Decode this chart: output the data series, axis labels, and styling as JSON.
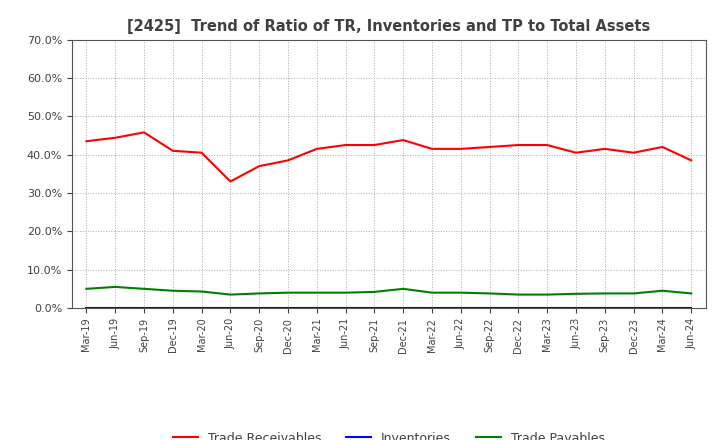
{
  "title": "[2425]  Trend of Ratio of TR, Inventories and TP to Total Assets",
  "x_labels": [
    "Mar-19",
    "Jun-19",
    "Sep-19",
    "Dec-19",
    "Mar-20",
    "Jun-20",
    "Sep-20",
    "Dec-20",
    "Mar-21",
    "Jun-21",
    "Sep-21",
    "Dec-21",
    "Mar-22",
    "Jun-22",
    "Sep-22",
    "Dec-22",
    "Mar-23",
    "Jun-23",
    "Sep-23",
    "Dec-23",
    "Mar-24",
    "Jun-24"
  ],
  "trade_receivables": [
    0.435,
    0.444,
    0.458,
    0.41,
    0.405,
    0.33,
    0.37,
    0.385,
    0.415,
    0.425,
    0.425,
    0.438,
    0.415,
    0.415,
    0.42,
    0.425,
    0.425,
    0.405,
    0.415,
    0.405,
    0.42,
    0.385
  ],
  "inventories": [
    0.001,
    0.001,
    0.001,
    0.001,
    0.001,
    0.001,
    0.001,
    0.001,
    0.001,
    0.001,
    0.001,
    0.001,
    0.001,
    0.001,
    0.001,
    0.001,
    0.001,
    0.001,
    0.001,
    0.001,
    0.001,
    0.001
  ],
  "trade_payables": [
    0.05,
    0.055,
    0.05,
    0.045,
    0.043,
    0.035,
    0.038,
    0.04,
    0.04,
    0.04,
    0.042,
    0.05,
    0.04,
    0.04,
    0.038,
    0.035,
    0.035,
    0.037,
    0.038,
    0.038,
    0.045,
    0.038
  ],
  "tr_color": "#FF0000",
  "inv_color": "#0000FF",
  "tp_color": "#008000",
  "ylim": [
    0.0,
    0.7
  ],
  "yticks": [
    0.0,
    0.1,
    0.2,
    0.3,
    0.4,
    0.5,
    0.6,
    0.7
  ],
  "legend_labels": [
    "Trade Receivables",
    "Inventories",
    "Trade Payables"
  ],
  "bg_color": "#FFFFFF",
  "plot_bg_color": "#FFFFFF",
  "title_color": "#404040",
  "tick_color": "#404040",
  "spine_color": "#555555",
  "grid_color": "#AAAAAA"
}
